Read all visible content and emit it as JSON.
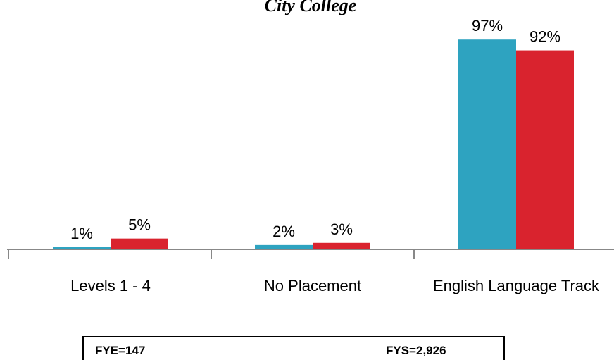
{
  "chart_data": {
    "type": "bar",
    "title": "City College",
    "categories": [
      "Levels 1 - 4",
      "No Placement",
      "English Language Track"
    ],
    "series": [
      {
        "name": "FYE=147",
        "color": "#2ea3c0",
        "values": [
          1,
          2,
          97
        ],
        "value_labels": [
          "1%",
          "2%",
          "97%"
        ]
      },
      {
        "name": "FYS=2,926",
        "color": "#d9232e",
        "values": [
          5,
          3,
          92
        ],
        "value_labels": [
          "5%",
          "3%",
          "92%"
        ]
      }
    ]
  }
}
